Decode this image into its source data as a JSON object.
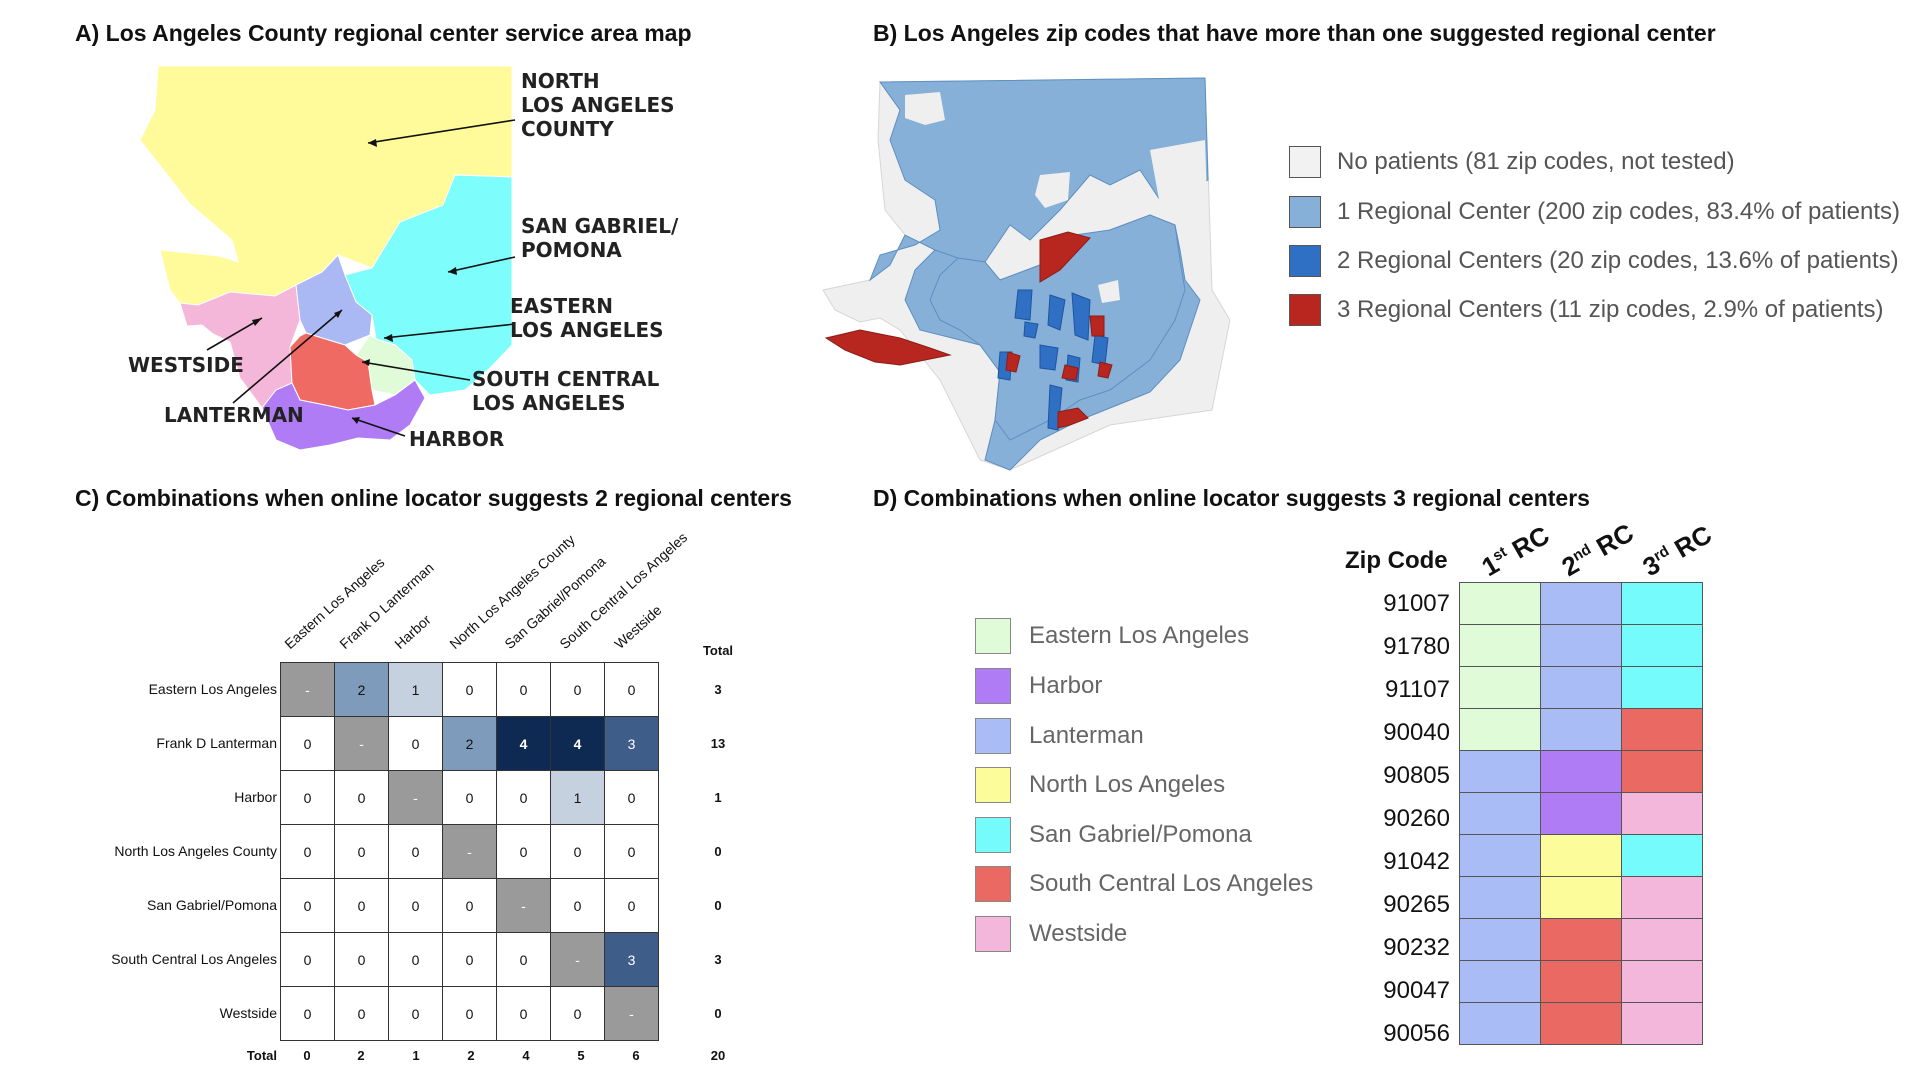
{
  "panels": {
    "a_title": "A) Los Angeles County regional center service area map",
    "b_title": "B) Los Angeles zip codes that have more than one suggested regional center",
    "c_title": "C) Combinations when online locator suggests 2 regional centers",
    "d_title": "D) Combinations when online locator suggests 3 regional centers"
  },
  "map_a": {
    "labels": {
      "north": [
        "NORTH",
        "LOS ANGELES",
        "COUNTY"
      ],
      "sangabriel": [
        "SAN GABRIEL/",
        "POMONA"
      ],
      "eastern": [
        "EASTERN",
        "LOS ANGELES"
      ],
      "westside": "WESTSIDE",
      "southcentral": [
        "SOUTH CENTRAL",
        "LOS ANGELES"
      ],
      "lanterman": "LANTERMAN",
      "harbor": "HARBOR"
    },
    "colors": {
      "north": "#fffb9a",
      "sangabriel": "#7dfdfc",
      "eastern": "#e0fbd8",
      "westside": "#f4b6d9",
      "southcentral": "#f06a64",
      "lanterman": "#aab9f4",
      "harbor": "#b07cf5"
    }
  },
  "map_b": {
    "legend": [
      {
        "label": "No patients (81 zip codes, not tested)",
        "color": "#f2f2f2"
      },
      {
        "label": "1 Regional Center (200 zip codes, 83.4% of patients)",
        "color": "#86b0d8"
      },
      {
        "label": "2 Regional Centers (20 zip codes, 13.6% of patients)",
        "color": "#2f6fc4"
      },
      {
        "label": "3 Regional Centers (11 zip codes, 2.9% of patients)",
        "color": "#b7271f"
      }
    ]
  },
  "matrix": {
    "columns": [
      "Eastern Los Angeles",
      "Frank D Lanterman",
      "Harbor",
      "North Los Angeles County",
      "San Gabriel/Pomona",
      "South Central Los Angeles",
      "Westside"
    ],
    "rows": [
      "Eastern Los Angeles",
      "Frank D Lanterman",
      "Harbor",
      "North Los Angeles County",
      "San Gabriel/Pomona",
      "South Central Los Angeles",
      "Westside"
    ],
    "values": [
      [
        "-",
        "2",
        "1",
        "0",
        "0",
        "0",
        "0"
      ],
      [
        "0",
        "-",
        "0",
        "2",
        "4",
        "4",
        "3"
      ],
      [
        "0",
        "0",
        "-",
        "0",
        "0",
        "1",
        "0"
      ],
      [
        "0",
        "0",
        "0",
        "-",
        "0",
        "0",
        "0"
      ],
      [
        "0",
        "0",
        "0",
        "0",
        "-",
        "0",
        "0"
      ],
      [
        "0",
        "0",
        "0",
        "0",
        "0",
        "-",
        "3"
      ],
      [
        "0",
        "0",
        "0",
        "0",
        "0",
        "0",
        "-"
      ]
    ],
    "total_header": "Total",
    "row_totals": [
      "3",
      "13",
      "1",
      "0",
      "0",
      "3",
      "0"
    ],
    "total_label": "Total",
    "col_totals": [
      "0",
      "2",
      "1",
      "2",
      "4",
      "5",
      "6"
    ],
    "grand_total": "20"
  },
  "zip_table": {
    "header": "Zip Code",
    "rc_headers": [
      {
        "num": "1",
        "sup": "st",
        "rest": " RC"
      },
      {
        "num": "2",
        "sup": "nd",
        "rest": " RC"
      },
      {
        "num": "3",
        "sup": "rd",
        "rest": " RC"
      }
    ],
    "legend": [
      {
        "label": "Eastern Los Angeles",
        "color": "#e0fbd8"
      },
      {
        "label": "Harbor",
        "color": "#b07cf5"
      },
      {
        "label": "Lanterman",
        "color": "#a9bcf5"
      },
      {
        "label": "North Los Angeles",
        "color": "#fdfc9b"
      },
      {
        "label": "San Gabriel/Pomona",
        "color": "#75fbfb"
      },
      {
        "label": "South Central Los Angeles",
        "color": "#ea6962"
      },
      {
        "label": "Westside",
        "color": "#f2b7da"
      }
    ],
    "rows": [
      {
        "zip": "91007",
        "rc": [
          "Eastern Los Angeles",
          "Lanterman",
          "San Gabriel/Pomona"
        ]
      },
      {
        "zip": "91780",
        "rc": [
          "Eastern Los Angeles",
          "Lanterman",
          "San Gabriel/Pomona"
        ]
      },
      {
        "zip": "91107",
        "rc": [
          "Eastern Los Angeles",
          "Lanterman",
          "San Gabriel/Pomona"
        ]
      },
      {
        "zip": "90040",
        "rc": [
          "Eastern Los Angeles",
          "Lanterman",
          "South Central Los Angeles"
        ]
      },
      {
        "zip": "90805",
        "rc": [
          "Lanterman",
          "Harbor",
          "South Central Los Angeles"
        ]
      },
      {
        "zip": "90260",
        "rc": [
          "Lanterman",
          "Harbor",
          "Westside"
        ]
      },
      {
        "zip": "91042",
        "rc": [
          "Lanterman",
          "North Los Angeles",
          "San Gabriel/Pomona"
        ]
      },
      {
        "zip": "90265",
        "rc": [
          "Lanterman",
          "North Los Angeles",
          "Westside"
        ]
      },
      {
        "zip": "90232",
        "rc": [
          "Lanterman",
          "South Central Los Angeles",
          "Westside"
        ]
      },
      {
        "zip": "90047",
        "rc": [
          "Lanterman",
          "South Central Los Angeles",
          "Westside"
        ]
      },
      {
        "zip": "90056",
        "rc": [
          "Lanterman",
          "South Central Los Angeles",
          "Westside"
        ]
      }
    ]
  }
}
